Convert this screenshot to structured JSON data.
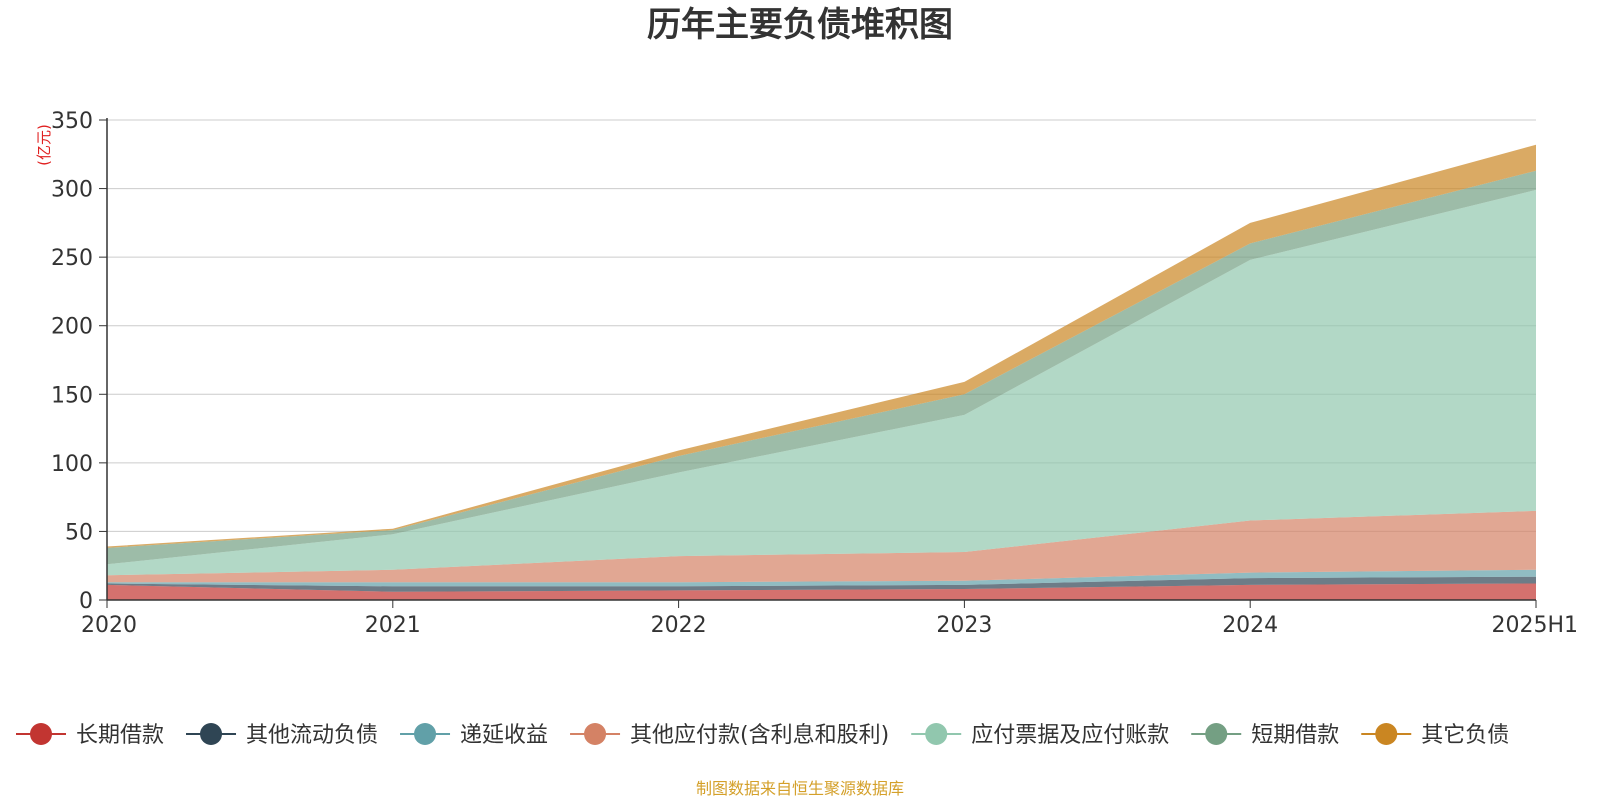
{
  "chart_data": {
    "type": "area",
    "stacked": true,
    "title": "历年主要负债堆积图",
    "unit_label": "(亿元)",
    "source_note": "制图数据来自恒生聚源数据库",
    "x": [
      "2020",
      "2021",
      "2022",
      "2023",
      "2024",
      "2025H1"
    ],
    "ylim": [
      0,
      350
    ],
    "yticks": [
      0,
      50,
      100,
      150,
      200,
      250,
      300,
      350
    ],
    "grid": true,
    "legend_position": "bottom",
    "series": [
      {
        "name": "长期借款",
        "color": "#c23531",
        "values": [
          11,
          6,
          7,
          8,
          11,
          12
        ]
      },
      {
        "name": "其他流动负债",
        "color": "#2f4554",
        "values": [
          1,
          4,
          3,
          3,
          5,
          5
        ]
      },
      {
        "name": "递延收益",
        "color": "#61a0a8",
        "values": [
          1,
          3,
          3,
          3,
          4,
          5
        ]
      },
      {
        "name": "其他应付款(含利息和股利)",
        "color": "#d48265",
        "values": [
          5,
          9,
          19,
          21,
          38,
          43
        ]
      },
      {
        "name": "应付票据及应付账款",
        "color": "#91c7ae",
        "values": [
          8,
          26,
          61,
          100,
          190,
          234
        ]
      },
      {
        "name": "短期借款",
        "color": "#749f83",
        "values": [
          12,
          3,
          12,
          15,
          12,
          14
        ]
      },
      {
        "name": "其它负债",
        "color": "#ca8622",
        "values": [
          1,
          1,
          4,
          9,
          15,
          19
        ]
      }
    ]
  }
}
